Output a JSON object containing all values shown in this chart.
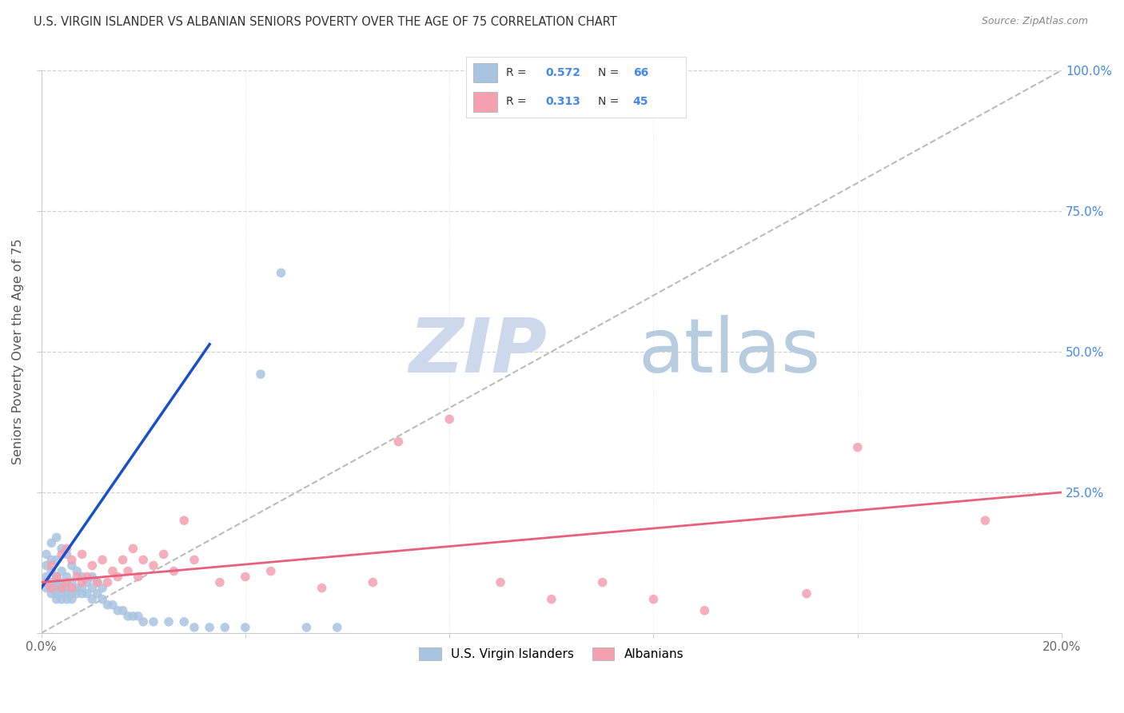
{
  "title": "U.S. VIRGIN ISLANDER VS ALBANIAN SENIORS POVERTY OVER THE AGE OF 75 CORRELATION CHART",
  "source": "Source: ZipAtlas.com",
  "ylabel": "Seniors Poverty Over the Age of 75",
  "xlim": [
    0.0,
    0.2
  ],
  "ylim": [
    0.0,
    1.0
  ],
  "xticks": [
    0.0,
    0.04,
    0.08,
    0.12,
    0.16,
    0.2
  ],
  "xticklabels": [
    "0.0%",
    "",
    "",
    "",
    "",
    "20.0%"
  ],
  "yticks": [
    0.0,
    0.25,
    0.5,
    0.75,
    1.0
  ],
  "right_yticklabels": [
    "",
    "25.0%",
    "50.0%",
    "75.0%",
    "100.0%"
  ],
  "vi_R": 0.572,
  "vi_N": 66,
  "al_R": 0.313,
  "al_N": 45,
  "vi_color": "#a8c4e0",
  "al_color": "#f4a0b0",
  "vi_line_color": "#1a4fcc",
  "al_line_color": "#e8607a",
  "diagonal_color": "#bbbbbb",
  "background_color": "#ffffff",
  "grid_color": "#cccccc",
  "watermark_zi_color": "#c8d4e8",
  "watermark_atlas_color": "#b0c4d8",
  "title_color": "#333333",
  "right_axis_color": "#4488ee",
  "vi_scatter_x": [
    0.001,
    0.001,
    0.001,
    0.001,
    0.002,
    0.002,
    0.002,
    0.002,
    0.002,
    0.002,
    0.003,
    0.003,
    0.003,
    0.003,
    0.003,
    0.003,
    0.003,
    0.004,
    0.004,
    0.004,
    0.004,
    0.004,
    0.004,
    0.005,
    0.005,
    0.005,
    0.005,
    0.005,
    0.006,
    0.006,
    0.006,
    0.006,
    0.007,
    0.007,
    0.007,
    0.008,
    0.008,
    0.008,
    0.009,
    0.009,
    0.01,
    0.01,
    0.01,
    0.011,
    0.011,
    0.012,
    0.012,
    0.013,
    0.014,
    0.015,
    0.016,
    0.017,
    0.018,
    0.019,
    0.02,
    0.022,
    0.025,
    0.028,
    0.03,
    0.033,
    0.036,
    0.04,
    0.043,
    0.047,
    0.052,
    0.058
  ],
  "vi_scatter_y": [
    0.08,
    0.1,
    0.12,
    0.14,
    0.07,
    0.08,
    0.09,
    0.11,
    0.13,
    0.16,
    0.06,
    0.07,
    0.08,
    0.09,
    0.1,
    0.13,
    0.17,
    0.06,
    0.07,
    0.08,
    0.09,
    0.11,
    0.15,
    0.06,
    0.07,
    0.08,
    0.1,
    0.14,
    0.06,
    0.07,
    0.09,
    0.12,
    0.07,
    0.08,
    0.11,
    0.07,
    0.08,
    0.1,
    0.07,
    0.09,
    0.06,
    0.08,
    0.1,
    0.07,
    0.09,
    0.06,
    0.08,
    0.05,
    0.05,
    0.04,
    0.04,
    0.03,
    0.03,
    0.03,
    0.02,
    0.02,
    0.02,
    0.02,
    0.01,
    0.01,
    0.01,
    0.01,
    0.46,
    0.64,
    0.01,
    0.01
  ],
  "al_scatter_x": [
    0.001,
    0.002,
    0.002,
    0.003,
    0.004,
    0.004,
    0.005,
    0.005,
    0.006,
    0.006,
    0.007,
    0.008,
    0.008,
    0.009,
    0.01,
    0.011,
    0.012,
    0.013,
    0.014,
    0.015,
    0.016,
    0.017,
    0.018,
    0.019,
    0.02,
    0.022,
    0.024,
    0.026,
    0.028,
    0.03,
    0.035,
    0.04,
    0.045,
    0.055,
    0.065,
    0.07,
    0.08,
    0.09,
    0.1,
    0.11,
    0.12,
    0.13,
    0.15,
    0.16,
    0.185
  ],
  "al_scatter_y": [
    0.09,
    0.08,
    0.12,
    0.1,
    0.08,
    0.14,
    0.09,
    0.15,
    0.08,
    0.13,
    0.1,
    0.09,
    0.14,
    0.1,
    0.12,
    0.09,
    0.13,
    0.09,
    0.11,
    0.1,
    0.13,
    0.11,
    0.15,
    0.1,
    0.13,
    0.12,
    0.14,
    0.11,
    0.2,
    0.13,
    0.09,
    0.1,
    0.11,
    0.08,
    0.09,
    0.34,
    0.38,
    0.09,
    0.06,
    0.09,
    0.06,
    0.04,
    0.07,
    0.33,
    0.2
  ],
  "legend_box_color": "#ffffff",
  "legend_edge_color": "#dddddd"
}
